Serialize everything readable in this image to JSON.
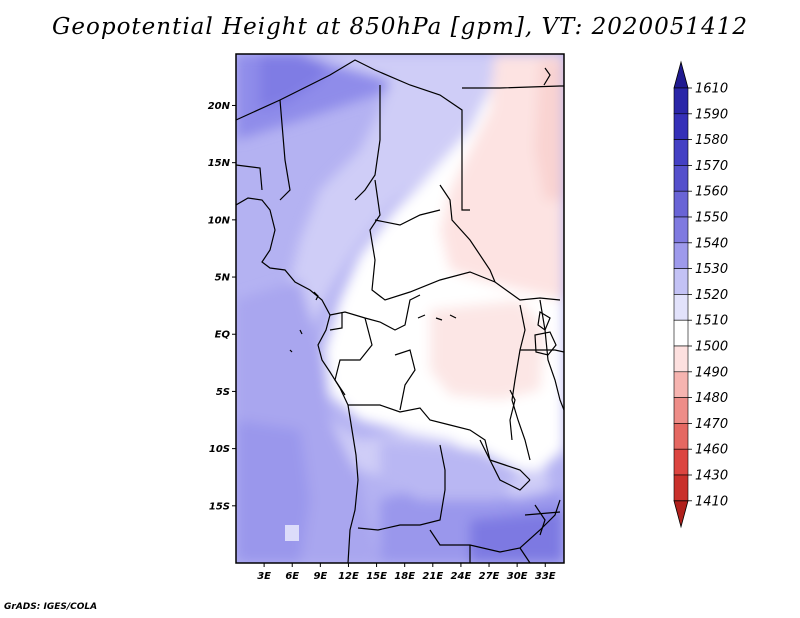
{
  "map": {
    "title": "Geopotential Height at 850hPa [gpm], VT: 2020051412",
    "credit": "GrADS: IGES/COLA",
    "lat_labels": [
      "20N",
      "15N",
      "10N",
      "5N",
      "EQ",
      "5S",
      "10S",
      "15S"
    ],
    "lon_labels": [
      "3E",
      "6E",
      "9E",
      "12E",
      "15E",
      "18E",
      "21E",
      "24E",
      "27E",
      "30E",
      "33E"
    ],
    "extent": {
      "lon_min": 0,
      "lon_max": 35,
      "lat_min": -20,
      "lat_max": 24.5
    },
    "colorbar": {
      "levels": [
        "1610",
        "1590",
        "1580",
        "1570",
        "1560",
        "1550",
        "1540",
        "1530",
        "1520",
        "1510",
        "1500",
        "1490",
        "1480",
        "1470",
        "1460",
        "1430",
        "1410"
      ],
      "colors": [
        "#201a90",
        "#2a26a8",
        "#3530b8",
        "#4440c4",
        "#5550cc",
        "#6964d6",
        "#7f7ae0",
        "#9e9aec",
        "#c3c2f5",
        "#e2e2fb",
        "#ffffff",
        "#fde0df",
        "#f6b4b0",
        "#ee8d88",
        "#e56862",
        "#dc4540",
        "#c9302b",
        "#b0201c"
      ]
    }
  }
}
